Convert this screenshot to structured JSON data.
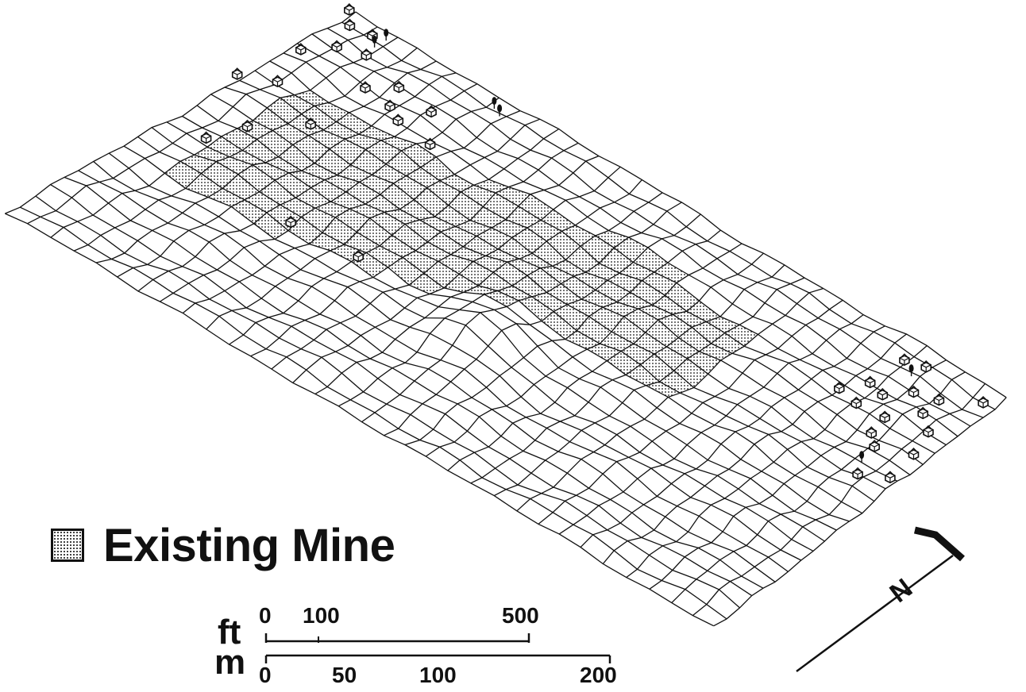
{
  "legend": {
    "label": "Existing Mine",
    "pattern": "stippled"
  },
  "scale_bar": {
    "feet": {
      "unit": "ft",
      "ticks": [
        "0",
        "100",
        "500"
      ]
    },
    "meters": {
      "unit": "m",
      "ticks": [
        "0",
        "50",
        "100",
        "200"
      ]
    }
  },
  "north_arrow": {
    "label": "N"
  },
  "colors": {
    "ink": "#111111",
    "background": "#ffffff"
  },
  "icons": [
    "building-icon",
    "tree-icon",
    "north-arrow-icon",
    "stipple-swatch-icon"
  ]
}
